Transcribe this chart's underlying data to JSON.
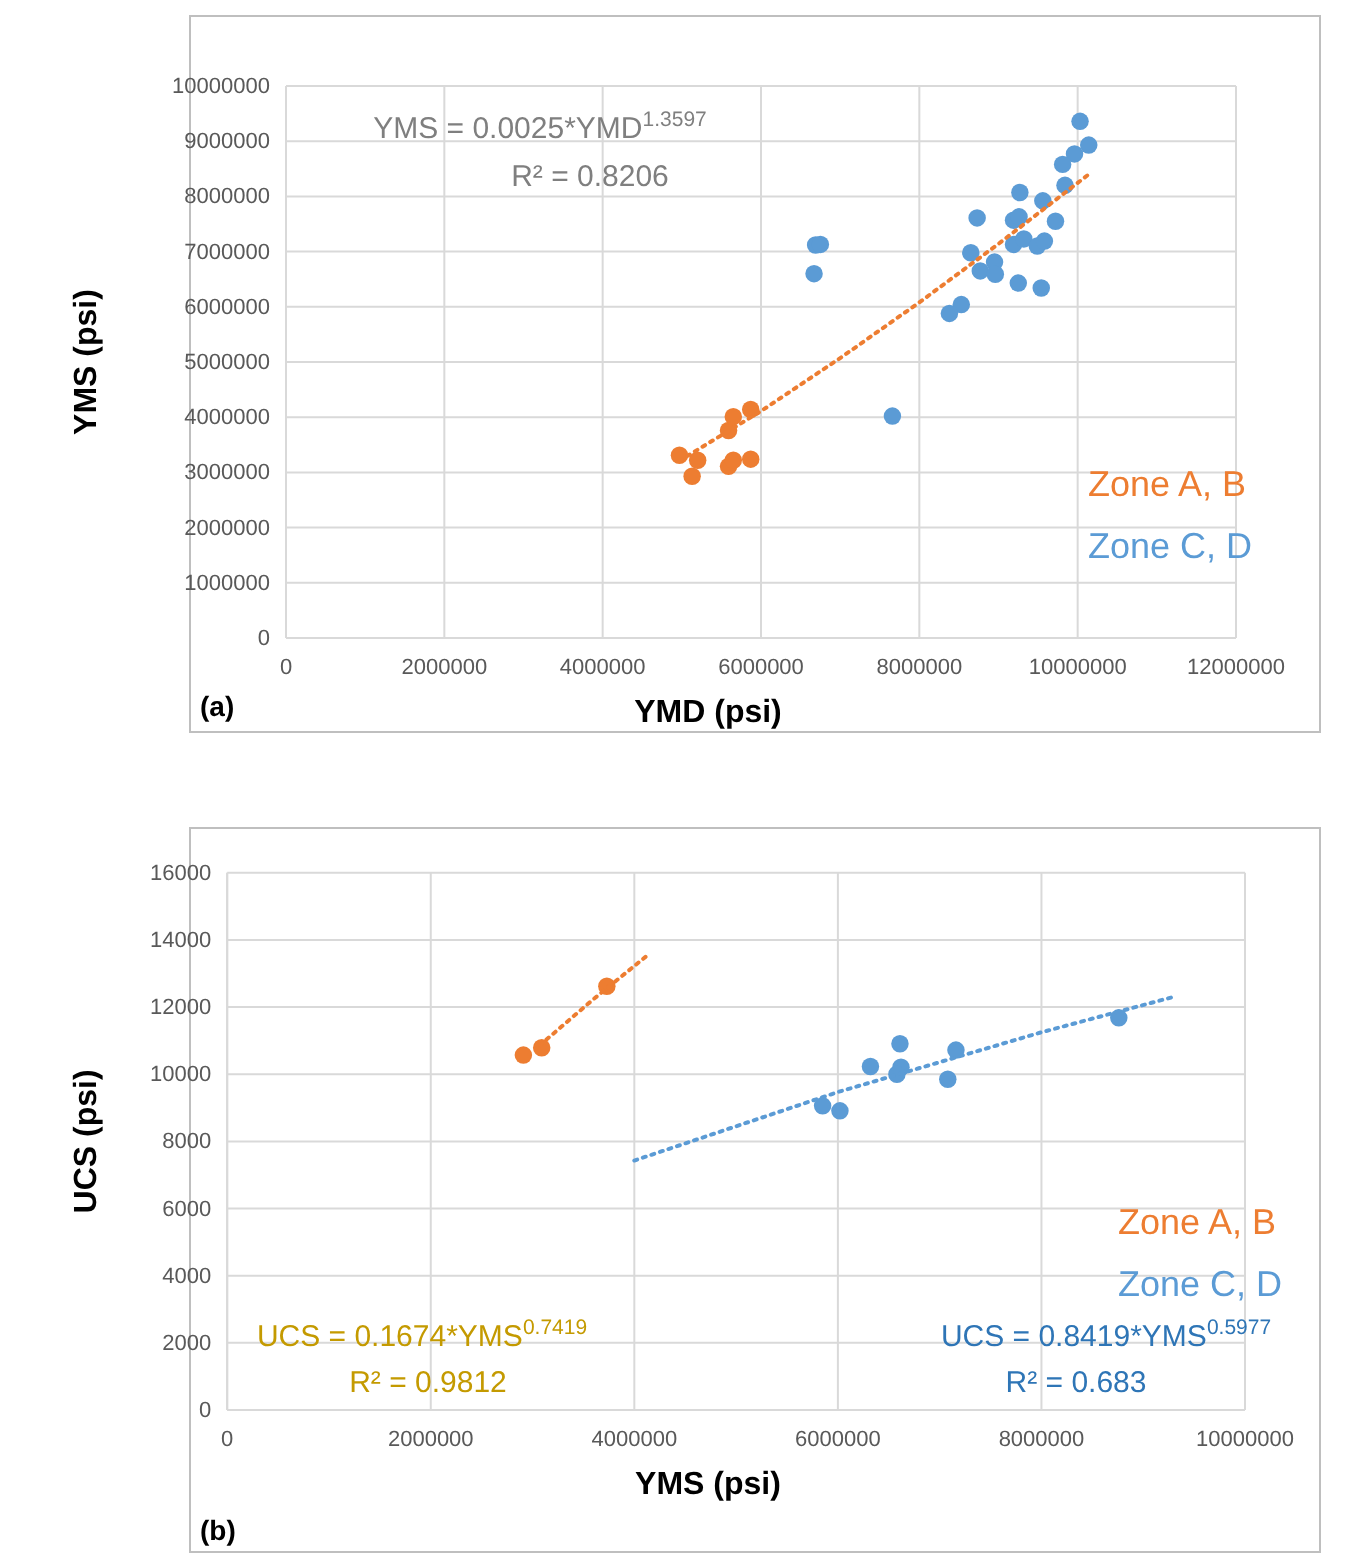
{
  "chart_data": [
    {
      "type": "scatter",
      "xlabel": "YMD (psi)",
      "ylabel": "YMS (psi)",
      "xlim": [
        0,
        12000000
      ],
      "ylim": [
        0,
        10000000
      ],
      "xticks": [
        0,
        2000000,
        4000000,
        6000000,
        8000000,
        10000000,
        12000000
      ],
      "yticks": [
        0,
        1000000,
        2000000,
        3000000,
        4000000,
        5000000,
        6000000,
        7000000,
        8000000,
        9000000,
        10000000
      ],
      "grid": true,
      "legend": "right",
      "marker": "circle",
      "annotations": [
        "YMS = 0.0025*YMD$^{1.3597}$",
        "R² = 0.8206",
        "(a)"
      ],
      "series": [
        {
          "name": "Zone A, B",
          "color": "#ed7d31",
          "x": [
            4970000,
            5200000,
            5130000,
            5590000,
            5650000,
            5870000,
            5590000,
            5650000,
            5870000
          ],
          "values": [
            3310000,
            3220000,
            2930000,
            3110000,
            3220000,
            3240000,
            3760000,
            4010000,
            4140000
          ]
        },
        {
          "name": "Zone C, D",
          "color": "#5b9bd5",
          "x": [
            10030000,
            10140000,
            9960000,
            9810000,
            9840000,
            9270000,
            9560000,
            8730000,
            9190000,
            9260000,
            9720000,
            9190000,
            9320000,
            9490000,
            9580000,
            8650000,
            8950000,
            8770000,
            8960000,
            9250000,
            9540000,
            8530000,
            8380000,
            6690000,
            6750000,
            6670000,
            7660000
          ],
          "values": [
            9360000,
            8930000,
            8770000,
            8580000,
            8200000,
            8070000,
            7920000,
            7610000,
            7570000,
            7630000,
            7550000,
            7130000,
            7230000,
            7100000,
            7190000,
            6980000,
            6810000,
            6650000,
            6590000,
            6430000,
            6340000,
            6040000,
            5880000,
            7120000,
            7130000,
            6600000,
            4020000
          ]
        },
        {
          "type": "line",
          "line_style": "dotted",
          "marker": "none",
          "color": "#ed7d31",
          "x": [
            4970000,
            6000000,
            7000000,
            8000000,
            9000000,
            10140000
          ],
          "values": [
            3210000,
            4110000,
            5070000,
            6080000,
            7140000,
            8400000
          ]
        }
      ]
    },
    {
      "type": "scatter",
      "xlabel": "YMS (psi)",
      "ylabel": "UCS (psi)",
      "xlim": [
        0,
        10000000
      ],
      "ylim": [
        0,
        16000
      ],
      "xticks": [
        0,
        2000000,
        4000000,
        6000000,
        8000000,
        10000000
      ],
      "yticks": [
        0,
        2000,
        4000,
        6000,
        8000,
        10000,
        12000,
        14000,
        16000
      ],
      "grid": true,
      "legend": "right",
      "marker": "circle",
      "annotations": [
        "UCS = 0.1674*YMS$^{0.7419}$",
        "R² = 0.9812",
        "UCS = 0.8419*YMS$^{0.5977}$",
        "R² = 0.683",
        "(b)"
      ],
      "series": [
        {
          "name": "Zone A, B",
          "color": "#ed7d31",
          "x": [
            2910000,
            3090000,
            3730000
          ],
          "values": [
            10570,
            10790,
            12620
          ]
        },
        {
          "name": "Zone C, D",
          "color": "#5b9bd5",
          "x": [
            5850000,
            6020000,
            6320000,
            6610000,
            6620000,
            6580000,
            7080000,
            7160000,
            8760000
          ],
          "values": [
            9060,
            8910,
            10230,
            10910,
            10210,
            10000,
            9850,
            10720,
            11680
          ]
        },
        {
          "type": "line",
          "line_style": "dotted",
          "marker": "none",
          "color": "#ed7d31",
          "x": [
            3070000,
            3600000,
            4120000
          ],
          "values": [
            10860,
            12240,
            13520
          ]
        },
        {
          "type": "line",
          "line_style": "dotted",
          "marker": "none",
          "color": "#5b9bd5",
          "x": [
            4000000,
            6000000,
            8000000,
            9280000
          ],
          "values": [
            7430,
            9470,
            11250,
            12290
          ]
        }
      ]
    }
  ]
}
